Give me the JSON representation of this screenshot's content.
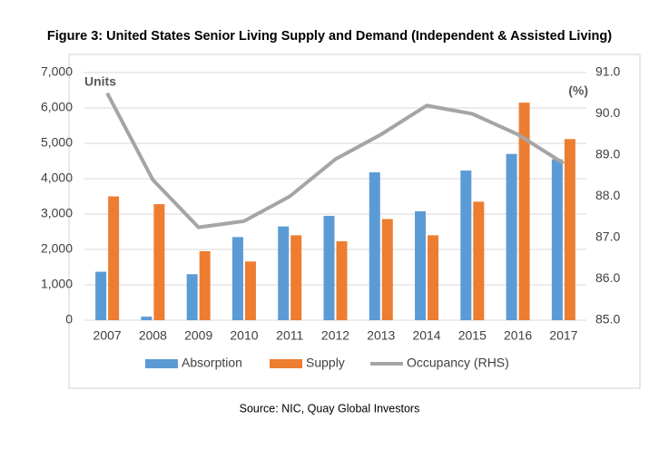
{
  "chart_data": {
    "type": "bar",
    "title": "Figure 3: United States Senior Living Supply and Demand (Independent & Assisted Living)",
    "source": "Source: NIC, Quay Global Investors",
    "y_label": "Units",
    "y2_label": "(%)",
    "categories": [
      "2007",
      "2008",
      "2009",
      "2010",
      "2011",
      "2012",
      "2013",
      "2014",
      "2015",
      "2016",
      "2017"
    ],
    "series": [
      {
        "name": "Absorption",
        "color": "#5b9bd5",
        "type": "bar",
        "values": [
          1370,
          100,
          1300,
          2350,
          2650,
          2950,
          4180,
          3080,
          4230,
          4700,
          4550
        ]
      },
      {
        "name": "Supply",
        "color": "#ed7d31",
        "type": "bar",
        "values": [
          3500,
          3280,
          1950,
          1660,
          2400,
          2230,
          2860,
          2400,
          3350,
          6150,
          5120
        ]
      },
      {
        "name": "Occupancy (RHS)",
        "color": "#a5a5a5",
        "type": "line",
        "axis": "y2",
        "values": [
          90.5,
          88.4,
          87.25,
          87.4,
          88.0,
          88.9,
          89.5,
          90.2,
          90.0,
          89.5,
          88.8
        ]
      }
    ],
    "ylim": [
      0,
      7000
    ],
    "yticks": [
      0,
      {
        "value": 1000,
        "label": "1,000"
      },
      {
        "value": 2000,
        "label": "2,000"
      },
      {
        "value": 3000,
        "label": "3,000"
      },
      {
        "value": 4000,
        "label": "4,000"
      },
      {
        "value": 5000,
        "label": "5,000"
      },
      {
        "value": 6000,
        "label": "6,000"
      },
      {
        "value": 7000,
        "label": "7,000"
      }
    ],
    "y2lim": [
      85,
      91
    ],
    "y2ticks": [
      {
        "value": 85,
        "label": "85.0"
      },
      {
        "value": 86,
        "label": "86.0"
      },
      {
        "value": 87,
        "label": "87.0"
      },
      {
        "value": 88,
        "label": "88.0"
      },
      {
        "value": 89,
        "label": "89.0"
      },
      {
        "value": 90,
        "label": "90.0"
      },
      {
        "value": 91,
        "label": "91.0"
      }
    ],
    "grid": true,
    "legend": "bottom"
  }
}
